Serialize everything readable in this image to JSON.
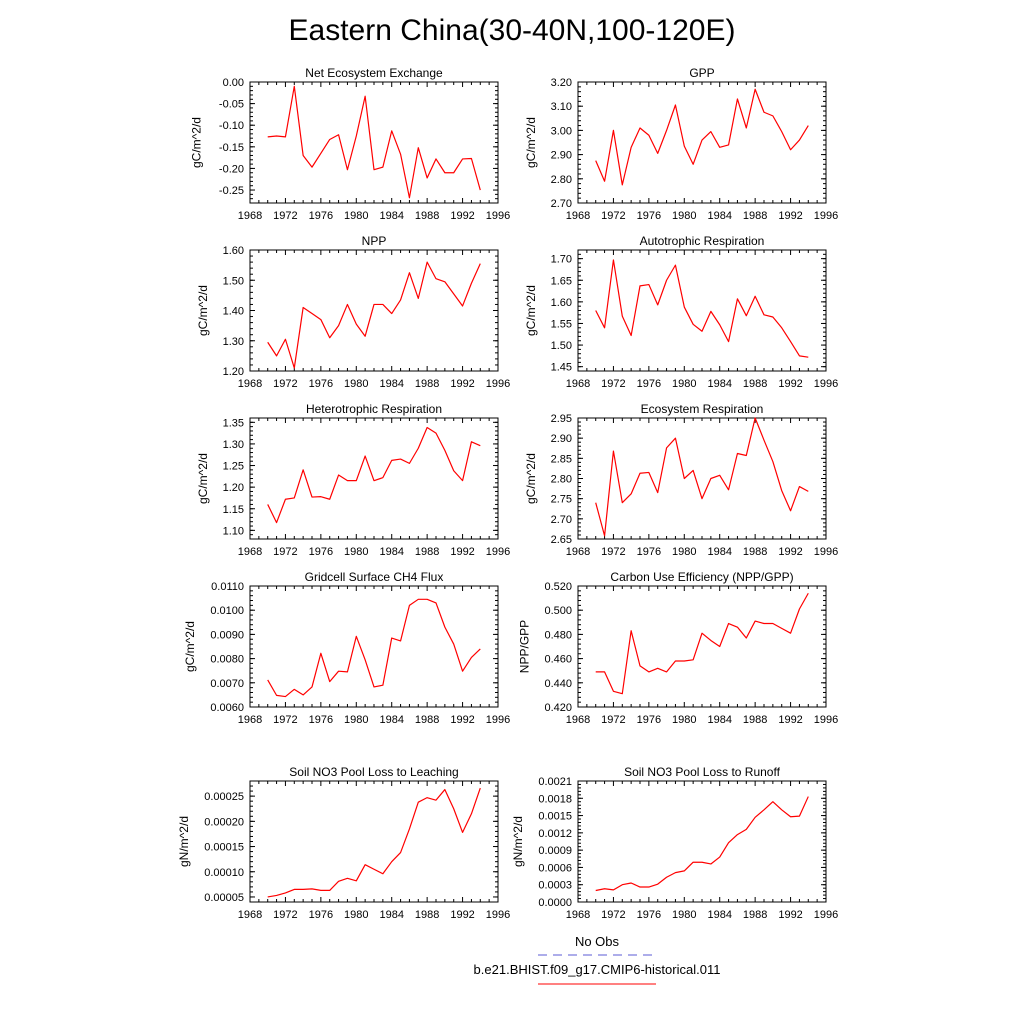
{
  "figure": {
    "title": "Eastern China(30-40N,100-120E)"
  },
  "legend": {
    "items": [
      {
        "label": "No Obs",
        "color": "#5b5bd6",
        "dashed": true
      },
      {
        "label": "b.e21.BHIST.f09_g17.CMIP6-historical.011",
        "color": "#ff0000",
        "dashed": false
      }
    ]
  },
  "chart_data": [
    {
      "type": "line",
      "title": "Net Ecosystem Exchange",
      "ylabel": "gC/m^2/d",
      "xlim": [
        1968,
        1996
      ],
      "ylim": [
        -0.28,
        0.0
      ],
      "xticks": [
        1968,
        1972,
        1976,
        1980,
        1984,
        1988,
        1992,
        1996
      ],
      "yticks": [
        "0.00",
        "-0.05",
        "-0.10",
        "-0.15",
        "-0.20",
        "-0.25"
      ],
      "x": [
        1970,
        1971,
        1972,
        1973,
        1974,
        1975,
        1976,
        1977,
        1978,
        1979,
        1980,
        1981,
        1982,
        1983,
        1984,
        1985,
        1986,
        1987,
        1988,
        1989,
        1990,
        1991,
        1992,
        1993,
        1994
      ],
      "series": [
        {
          "values": [
            -0.127,
            -0.125,
            -0.127,
            -0.01,
            -0.17,
            -0.197,
            -0.165,
            -0.133,
            -0.122,
            -0.203,
            -0.125,
            -0.033,
            -0.203,
            -0.197,
            -0.113,
            -0.167,
            -0.268,
            -0.152,
            -0.222,
            -0.178,
            -0.21,
            -0.21,
            -0.178,
            -0.177,
            -0.25
          ],
          "color": "#ff0000"
        }
      ]
    },
    {
      "type": "line",
      "title": "GPP",
      "ylabel": "gC/m^2/d",
      "xlim": [
        1968,
        1996
      ],
      "ylim": [
        2.7,
        3.2
      ],
      "xticks": [
        1968,
        1972,
        1976,
        1980,
        1984,
        1988,
        1992,
        1996
      ],
      "yticks": [
        "3.20",
        "3.10",
        "3.00",
        "2.90",
        "2.80",
        "2.70"
      ],
      "x": [
        1970,
        1971,
        1972,
        1973,
        1974,
        1975,
        1976,
        1977,
        1978,
        1979,
        1980,
        1981,
        1982,
        1983,
        1984,
        1985,
        1986,
        1987,
        1988,
        1989,
        1990,
        1991,
        1992,
        1993,
        1994
      ],
      "series": [
        {
          "values": [
            2.875,
            2.79,
            3.0,
            2.775,
            2.93,
            3.01,
            2.98,
            2.905,
            3.0,
            3.105,
            2.935,
            2.86,
            2.96,
            2.995,
            2.93,
            2.94,
            3.13,
            3.01,
            3.17,
            3.075,
            3.06,
            2.995,
            2.92,
            2.96,
            3.02
          ],
          "color": "#ff0000"
        }
      ]
    },
    {
      "type": "line",
      "title": "NPP",
      "ylabel": "gC/m^2/d",
      "xlim": [
        1968,
        1996
      ],
      "ylim": [
        1.2,
        1.6
      ],
      "xticks": [
        1968,
        1972,
        1976,
        1980,
        1984,
        1988,
        1992,
        1996
      ],
      "yticks": [
        "1.60",
        "1.50",
        "1.40",
        "1.30",
        "1.20"
      ],
      "x": [
        1970,
        1971,
        1972,
        1973,
        1974,
        1975,
        1976,
        1977,
        1978,
        1979,
        1980,
        1981,
        1982,
        1983,
        1984,
        1985,
        1986,
        1987,
        1988,
        1989,
        1990,
        1991,
        1992,
        1993,
        1994
      ],
      "series": [
        {
          "values": [
            1.295,
            1.25,
            1.305,
            1.21,
            1.41,
            1.39,
            1.37,
            1.31,
            1.35,
            1.42,
            1.355,
            1.315,
            1.42,
            1.42,
            1.39,
            1.435,
            1.525,
            1.44,
            1.56,
            1.505,
            1.495,
            1.455,
            1.415,
            1.49,
            1.555
          ],
          "color": "#ff0000"
        }
      ]
    },
    {
      "type": "line",
      "title": "Autotrophic Respiration",
      "ylabel": "gC/m^2/d",
      "xlim": [
        1968,
        1996
      ],
      "ylim": [
        1.44,
        1.72
      ],
      "xticks": [
        1968,
        1972,
        1976,
        1980,
        1984,
        1988,
        1992,
        1996
      ],
      "yticks": [
        "1.70",
        "1.65",
        "1.60",
        "1.55",
        "1.50",
        "1.45"
      ],
      "x": [
        1970,
        1971,
        1972,
        1973,
        1974,
        1975,
        1976,
        1977,
        1978,
        1979,
        1980,
        1981,
        1982,
        1983,
        1984,
        1985,
        1986,
        1987,
        1988,
        1989,
        1990,
        1991,
        1992,
        1993,
        1994
      ],
      "series": [
        {
          "values": [
            1.58,
            1.54,
            1.697,
            1.567,
            1.522,
            1.637,
            1.64,
            1.593,
            1.65,
            1.685,
            1.588,
            1.548,
            1.532,
            1.578,
            1.547,
            1.508,
            1.607,
            1.568,
            1.613,
            1.57,
            1.565,
            1.54,
            1.508,
            1.475,
            1.472
          ],
          "color": "#ff0000"
        }
      ]
    },
    {
      "type": "line",
      "title": "Heterotrophic Respiration",
      "ylabel": "gC/m^2/d",
      "xlim": [
        1968,
        1996
      ],
      "ylim": [
        1.08,
        1.36
      ],
      "xticks": [
        1968,
        1972,
        1976,
        1980,
        1984,
        1988,
        1992,
        1996
      ],
      "yticks": [
        "1.35",
        "1.30",
        "1.25",
        "1.20",
        "1.15",
        "1.10"
      ],
      "x": [
        1970,
        1971,
        1972,
        1973,
        1974,
        1975,
        1976,
        1977,
        1978,
        1979,
        1980,
        1981,
        1982,
        1983,
        1984,
        1985,
        1986,
        1987,
        1988,
        1989,
        1990,
        1991,
        1992,
        1993,
        1994
      ],
      "series": [
        {
          "values": [
            1.16,
            1.118,
            1.172,
            1.175,
            1.24,
            1.177,
            1.178,
            1.172,
            1.228,
            1.215,
            1.215,
            1.272,
            1.215,
            1.222,
            1.262,
            1.265,
            1.255,
            1.29,
            1.338,
            1.325,
            1.285,
            1.238,
            1.215,
            1.305,
            1.296
          ],
          "color": "#ff0000"
        }
      ]
    },
    {
      "type": "line",
      "title": "Ecosystem Respiration",
      "ylabel": "gC/m^2/d",
      "xlim": [
        1968,
        1996
      ],
      "ylim": [
        2.65,
        2.95
      ],
      "xticks": [
        1968,
        1972,
        1976,
        1980,
        1984,
        1988,
        1992,
        1996
      ],
      "yticks": [
        "2.95",
        "2.90",
        "2.85",
        "2.80",
        "2.75",
        "2.70",
        "2.65"
      ],
      "x": [
        1970,
        1971,
        1972,
        1973,
        1974,
        1975,
        1976,
        1977,
        1978,
        1979,
        1980,
        1981,
        1982,
        1983,
        1984,
        1985,
        1986,
        1987,
        1988,
        1989,
        1990,
        1991,
        1992,
        1993,
        1994
      ],
      "series": [
        {
          "values": [
            2.74,
            2.658,
            2.868,
            2.74,
            2.762,
            2.813,
            2.815,
            2.765,
            2.876,
            2.9,
            2.8,
            2.82,
            2.75,
            2.8,
            2.808,
            2.772,
            2.862,
            2.857,
            2.95,
            2.895,
            2.842,
            2.77,
            2.72,
            2.78,
            2.768
          ],
          "color": "#ff0000"
        }
      ]
    },
    {
      "type": "line",
      "title": "Gridcell Surface CH4 Flux",
      "ylabel": "gC/m^2/d",
      "xlim": [
        1968,
        1996
      ],
      "ylim": [
        0.006,
        0.011
      ],
      "xticks": [
        1968,
        1972,
        1976,
        1980,
        1984,
        1988,
        1992,
        1996
      ],
      "yticks": [
        "0.0110",
        "0.0100",
        "0.0090",
        "0.0080",
        "0.0070",
        "0.0060"
      ],
      "x": [
        1970,
        1971,
        1972,
        1973,
        1974,
        1975,
        1976,
        1977,
        1978,
        1979,
        1980,
        1981,
        1982,
        1983,
        1984,
        1985,
        1986,
        1987,
        1988,
        1989,
        1990,
        1991,
        1992,
        1993,
        1994
      ],
      "series": [
        {
          "values": [
            0.00712,
            0.00648,
            0.00643,
            0.00673,
            0.0065,
            0.00683,
            0.00822,
            0.00705,
            0.00748,
            0.00745,
            0.00892,
            0.00795,
            0.00683,
            0.0069,
            0.00885,
            0.00873,
            0.0102,
            0.01045,
            0.01045,
            0.0103,
            0.0093,
            0.0086,
            0.00748,
            0.00805,
            0.0084
          ],
          "color": "#ff0000"
        }
      ]
    },
    {
      "type": "line",
      "title": "Carbon Use Efficiency (NPP/GPP)",
      "ylabel": "NPP/GPP",
      "xlim": [
        1968,
        1996
      ],
      "ylim": [
        0.42,
        0.52
      ],
      "xticks": [
        1968,
        1972,
        1976,
        1980,
        1984,
        1988,
        1992,
        1996
      ],
      "yticks": [
        "0.520",
        "0.500",
        "0.480",
        "0.460",
        "0.440",
        "0.420"
      ],
      "x": [
        1970,
        1971,
        1972,
        1973,
        1974,
        1975,
        1976,
        1977,
        1978,
        1979,
        1980,
        1981,
        1982,
        1983,
        1984,
        1985,
        1986,
        1987,
        1988,
        1989,
        1990,
        1991,
        1992,
        1993,
        1994
      ],
      "series": [
        {
          "values": [
            0.449,
            0.449,
            0.433,
            0.431,
            0.483,
            0.454,
            0.449,
            0.452,
            0.449,
            0.458,
            0.458,
            0.459,
            0.481,
            0.475,
            0.47,
            0.489,
            0.486,
            0.477,
            0.491,
            0.489,
            0.489,
            0.485,
            0.481,
            0.501,
            0.514
          ],
          "color": "#ff0000"
        }
      ]
    },
    {
      "type": "line",
      "title": "Soil NO3 Pool Loss to Leaching",
      "ylabel": "gN/m^2/d",
      "xlim": [
        1968,
        1996
      ],
      "ylim": [
        4e-05,
        0.00028
      ],
      "xticks": [
        1968,
        1972,
        1976,
        1980,
        1984,
        1988,
        1992,
        1996
      ],
      "yticks": [
        "0.00025",
        "0.00020",
        "0.00015",
        "0.00010",
        "0.00005"
      ],
      "x": [
        1970,
        1971,
        1972,
        1973,
        1974,
        1975,
        1976,
        1977,
        1978,
        1979,
        1980,
        1981,
        1982,
        1983,
        1984,
        1985,
        1986,
        1987,
        1988,
        1989,
        1990,
        1991,
        1992,
        1993,
        1994
      ],
      "series": [
        {
          "values": [
            5e-05,
            5.3e-05,
            5.8e-05,
            6.5e-05,
            6.5e-05,
            6.6e-05,
            6.3e-05,
            6.3e-05,
            8.1e-05,
            8.7e-05,
            8.2e-05,
            0.000114,
            0.000105,
            9.6e-05,
            0.00012,
            0.000138,
            0.000185,
            0.000238,
            0.000247,
            0.000242,
            0.000263,
            0.000225,
            0.000178,
            0.000215,
            0.000266
          ],
          "color": "#ff0000"
        }
      ]
    },
    {
      "type": "line",
      "title": "Soil NO3 Pool Loss to Runoff",
      "ylabel": "gN/m^2/d",
      "xlim": [
        1968,
        1996
      ],
      "ylim": [
        0.0,
        0.0021
      ],
      "xticks": [
        1968,
        1972,
        1976,
        1980,
        1984,
        1988,
        1992,
        1996
      ],
      "yticks": [
        "0.0021",
        "0.0018",
        "0.0015",
        "0.0012",
        "0.0009",
        "0.0006",
        "0.0003",
        "0.0000"
      ],
      "x": [
        1970,
        1971,
        1972,
        1973,
        1974,
        1975,
        1976,
        1977,
        1978,
        1979,
        1980,
        1981,
        1982,
        1983,
        1984,
        1985,
        1986,
        1987,
        1988,
        1989,
        1990,
        1991,
        1992,
        1993,
        1994
      ],
      "series": [
        {
          "values": [
            0.0002,
            0.00023,
            0.00021,
            0.0003,
            0.00033,
            0.00026,
            0.00026,
            0.00031,
            0.00043,
            0.00051,
            0.00054,
            0.00069,
            0.00069,
            0.00066,
            0.00078,
            0.00103,
            0.00117,
            0.00126,
            0.00147,
            0.0016,
            0.00174,
            0.0016,
            0.00148,
            0.00149,
            0.00183
          ],
          "color": "#ff0000"
        }
      ]
    }
  ]
}
